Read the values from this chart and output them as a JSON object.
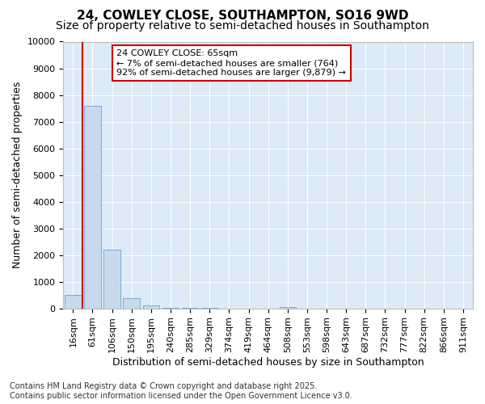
{
  "title_line1": "24, COWLEY CLOSE, SOUTHAMPTON, SO16 9WD",
  "title_line2": "Size of property relative to semi-detached houses in Southampton",
  "xlabel": "Distribution of semi-detached houses by size in Southampton",
  "ylabel": "Number of semi-detached properties",
  "categories": [
    "16sqm",
    "61sqm",
    "106sqm",
    "150sqm",
    "195sqm",
    "240sqm",
    "285sqm",
    "329sqm",
    "374sqm",
    "419sqm",
    "464sqm",
    "508sqm",
    "553sqm",
    "598sqm",
    "643sqm",
    "687sqm",
    "732sqm",
    "777sqm",
    "822sqm",
    "866sqm",
    "911sqm"
  ],
  "values": [
    500,
    7600,
    2200,
    380,
    100,
    30,
    10,
    5,
    2,
    1,
    1,
    50,
    1,
    1,
    1,
    0,
    0,
    0,
    0,
    0,
    0
  ],
  "bar_color": "#c8d9ee",
  "bar_edge_color": "#7aadd4",
  "vline_color": "#cc0000",
  "vline_x": 0.5,
  "annotation_text": "24 COWLEY CLOSE: 65sqm\n← 7% of semi-detached houses are smaller (764)\n92% of semi-detached houses are larger (9,879) →",
  "annotation_box_color": "#ffffff",
  "annotation_border_color": "#cc0000",
  "ylim": [
    0,
    10000
  ],
  "yticks": [
    0,
    1000,
    2000,
    3000,
    4000,
    5000,
    6000,
    7000,
    8000,
    9000,
    10000
  ],
  "plot_bg_color": "#ddeaf7",
  "fig_bg_color": "#ffffff",
  "grid_color": "#ffffff",
  "footnote": "Contains HM Land Registry data © Crown copyright and database right 2025.\nContains public sector information licensed under the Open Government Licence v3.0.",
  "title1_fontsize": 11,
  "title2_fontsize": 10,
  "axis_label_fontsize": 9,
  "tick_fontsize": 8,
  "annotation_fontsize": 8,
  "footnote_fontsize": 7
}
